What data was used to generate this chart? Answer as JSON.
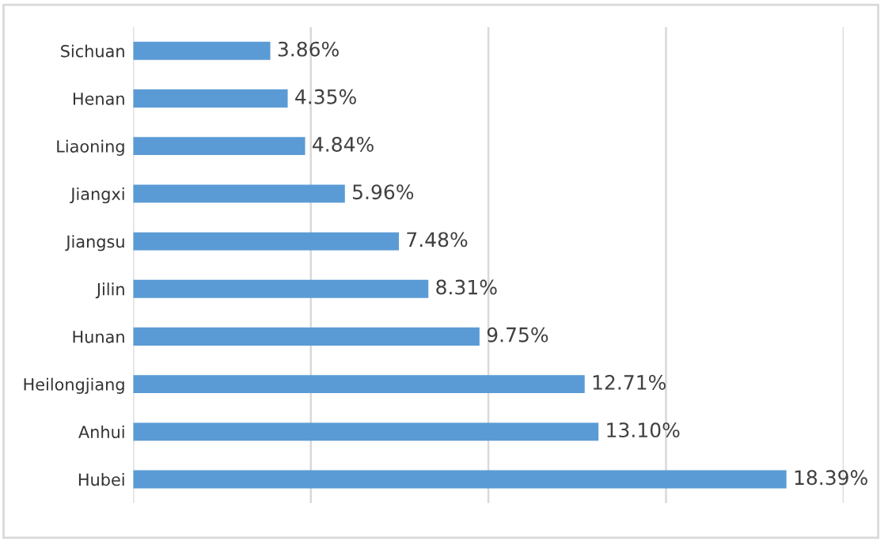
{
  "chart_data": {
    "type": "bar",
    "orientation": "horizontal",
    "categories": [
      "Sichuan",
      "Henan",
      "Liaoning",
      "Jiangxi",
      "Jiangsu",
      "Jilin",
      "Hunan",
      "Heilongjiang",
      "Anhui",
      "Hubei"
    ],
    "values": [
      3.86,
      4.35,
      4.84,
      5.96,
      7.48,
      8.31,
      9.75,
      12.71,
      13.1,
      18.39
    ],
    "value_labels": [
      "3.86%",
      "4.35%",
      "4.84%",
      "5.96%",
      "7.48%",
      "8.31%",
      "9.75%",
      "12.71%",
      "13.10%",
      "18.39%"
    ],
    "color": "#5b9bd5",
    "xlim": [
      0,
      20
    ],
    "xticks": [
      {
        "value": 0,
        "label": null
      },
      {
        "value": 5,
        "label": null
      },
      {
        "value": 10,
        "label": null
      },
      {
        "value": 15,
        "label": null
      },
      {
        "value": 20,
        "label": null
      }
    ],
    "grid": "x",
    "tick_labels": "y"
  }
}
